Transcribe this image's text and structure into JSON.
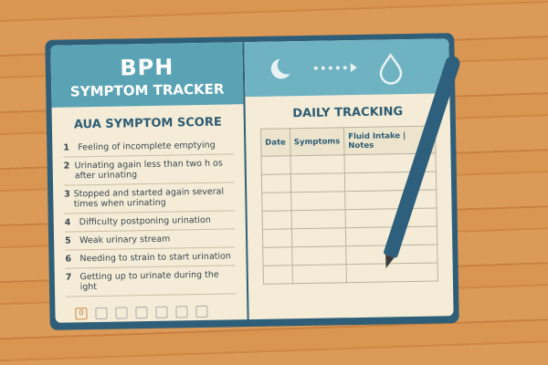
{
  "left_page": {
    "title": "BPH",
    "subtitle": "SYMPTOM TRACKER",
    "section": "AUA SYMPTOM SCORE",
    "items": [
      {
        "n": "1",
        "text": "Feeling of incomplete emptying"
      },
      {
        "n": "2",
        "text": "Urinating again less than two h os after urinating"
      },
      {
        "n": "3",
        "text": "Stopped and started again several times when urinating"
      },
      {
        "n": "4",
        "text": "Difficulty postponing urination"
      },
      {
        "n": "5",
        "text": "Weak urinary stream"
      },
      {
        "n": "6",
        "text": "Needing to strain to start urination"
      },
      {
        "n": "7",
        "text": "Getting up to urinate during the ight"
      }
    ],
    "score_box": "0"
  },
  "right_page": {
    "header_icons": [
      "moon-icon",
      "arrow-dots-icon",
      "water-drop-icon"
    ],
    "section": "DAILY TRACKING",
    "columns": [
      "Date",
      "Symptoms",
      "Fluid Intake | Notes"
    ]
  },
  "colors": {
    "accent": "#5aa3b5",
    "cover": "#2f5f78",
    "page": "#f4ecd6",
    "wood": "#d99552"
  }
}
